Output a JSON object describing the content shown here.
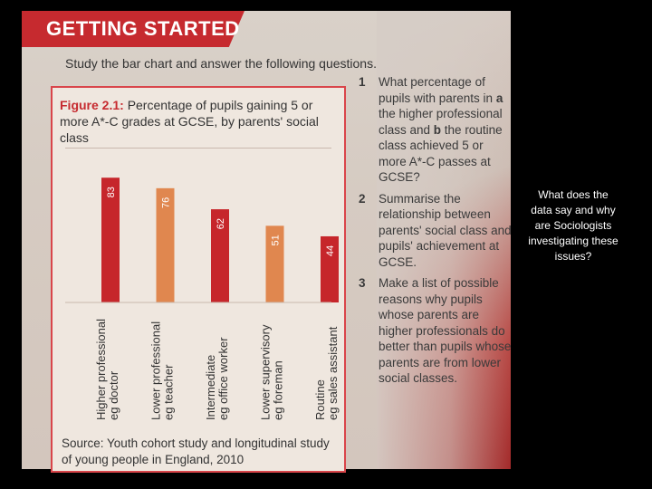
{
  "banner": {
    "title": "GETTING STARTED"
  },
  "intro": "Study the bar chart and answer the following questions.",
  "figure": {
    "label": "Figure 2.1:",
    "caption": "Percentage of pupils gaining 5 or more A*-C grades at GCSE, by parents' social class",
    "source": "Source: Youth cohort study and longitudinal study of young people in England, 2010"
  },
  "chart_data": {
    "type": "bar",
    "categories": [
      [
        "Higher professional",
        "eg doctor"
      ],
      [
        "Lower professional",
        "eg teacher"
      ],
      [
        "Intermediate",
        "eg office worker"
      ],
      [
        "Lower supervisory",
        "eg foreman"
      ],
      [
        "Routine",
        "eg sales assistant"
      ]
    ],
    "values": [
      83,
      76,
      62,
      51,
      44
    ],
    "colors": [
      "#c6262b",
      "#e0874f",
      "#c6262b",
      "#e0874f",
      "#c6262b"
    ],
    "ylim": [
      0,
      100
    ],
    "grid": false
  },
  "questions": [
    {
      "num": "1",
      "text_a": "What percentage of pupils with parents in ",
      "mark_a": "a",
      "text_b": " the higher professional class and ",
      "mark_b": "b",
      "text_c": " the routine class achieved 5 or more A*-C passes at GCSE?"
    },
    {
      "num": "2",
      "text": "Summarise the relationship between parents' social class and pupils' achievement at GCSE."
    },
    {
      "num": "3",
      "text": "Make a list of possible reasons why pupils whose parents are higher professionals do better than pupils whose parents are from lower social classes."
    }
  ],
  "side_note": "What does the data say and why are Sociologists investigating these issues?"
}
